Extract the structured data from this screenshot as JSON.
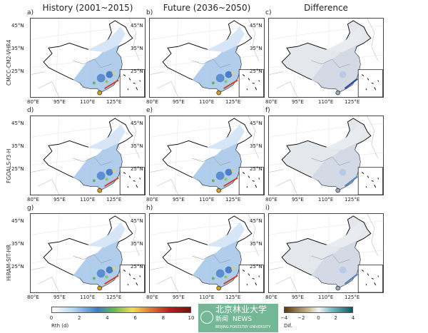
{
  "columns": [
    "History (2001~2015)",
    "Future (2036~2050)",
    "Difference"
  ],
  "rows": [
    "CMCC-CM2-VHR4",
    "FGOALS-f3-H",
    "HiRAM-SIT-HR"
  ],
  "panel_labels": [
    "a)",
    "b)",
    "c)",
    "d)",
    "e)",
    "f)",
    "g)",
    "h)",
    "i)"
  ],
  "lat_ticks": [
    "45°N",
    "35°N",
    "25°N"
  ],
  "lon_ticks": [
    "80°E",
    "95°E",
    "110°E",
    "125°E"
  ],
  "colorbar_main": {
    "label": "Rth (d)",
    "ticks": [
      "0",
      "2",
      "4",
      "6",
      "8",
      "10"
    ],
    "range": [
      0,
      10
    ]
  },
  "colorbar_diff": {
    "label": "Dif.",
    "ticks": [
      "−4",
      "−2",
      "0",
      "2",
      "4"
    ],
    "range": [
      -4,
      4
    ]
  },
  "watermark": {
    "name": "北京林业大学",
    "sub": "BEIJING FORESTRY UNIVERSITY",
    "news_cn": "新闻",
    "news_en": "NEWS"
  }
}
